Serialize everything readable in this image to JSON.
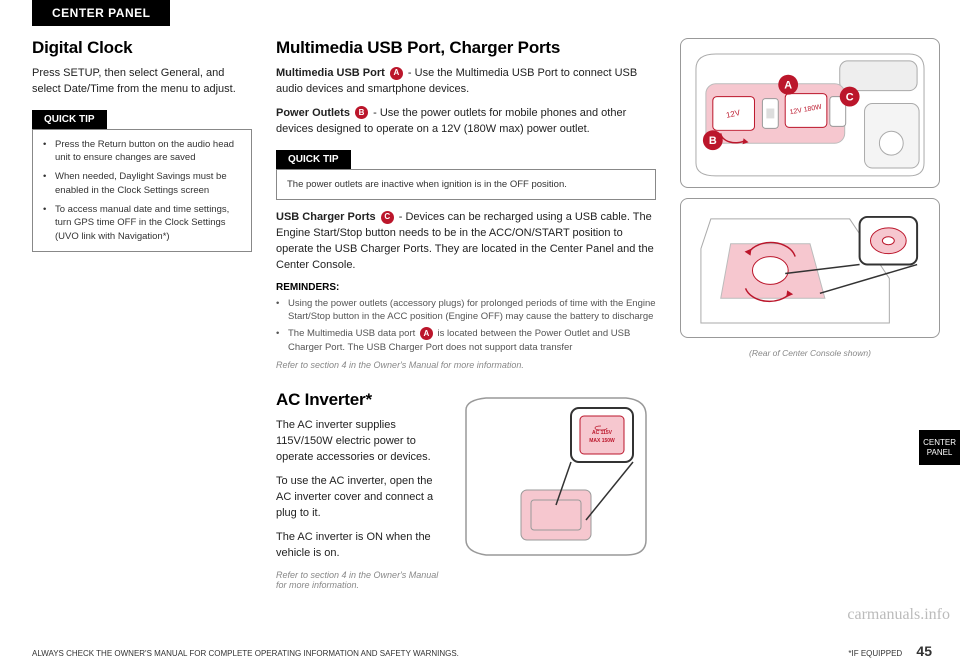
{
  "tab_label": "CENTER PANEL",
  "digital_clock": {
    "heading": "Digital Clock",
    "para": "Press SETUP, then select General, and select Date/Time from the menu to adjust.",
    "quicktip_label": "QUICK TIP",
    "tips": [
      "Press the Return button on the audio head unit to ensure changes are saved",
      "When needed, Daylight Savings must be enabled in the Clock Settings screen",
      "To access manual date and time settings, turn GPS time OFF in the Clock Settings (UVO link with Navigation*)"
    ]
  },
  "multimedia": {
    "heading": "Multimedia USB Port, Charger Ports",
    "line1_bold": "Multimedia USB Port",
    "line1_rest": " - Use the Multimedia USB Port to connect USB audio devices and smartphone devices.",
    "line2_bold": "Power Outlets",
    "line2_rest": " - Use the power outlets for mobile phones and other devices designed to operate on a 12V (180W max) power outlet.",
    "quicktip_label": "QUICK TIP",
    "quicktip_text": "The power outlets are inactive when ignition is in the OFF position.",
    "line3_bold": "USB Charger Ports",
    "line3_rest": " - Devices can be recharged using a USB cable. The Engine Start/Stop button needs to be in the ACC/ON/START position to operate the USB Charger Ports. They are located in the Center Panel and the Center Console.",
    "reminders_head": "REMINDERS:",
    "reminders": [
      "Using the power outlets (accessory plugs) for prolonged periods of time with the Engine Start/Stop button in the ACC position (Engine OFF) may cause the battery to discharge",
      "The Multimedia USB data port __A__ is located between the Power Outlet and USB Charger Port. The USB Charger Port does not support data transfer"
    ],
    "refer": "Refer to section 4 in the Owner's Manual for more information."
  },
  "ac": {
    "heading": "AC Inverter*",
    "p1": "The AC inverter supplies 115V/150W electric power to operate accessories or devices.",
    "p2": "To use the AC inverter, open the AC inverter cover and connect a plug to it.",
    "p3": "The AC inverter is ON when the vehicle is on.",
    "refer": "Refer to section 4 in the Owner's Manual for more information."
  },
  "badges": {
    "A": {
      "letter": "A",
      "color": "#bb162b"
    },
    "B": {
      "letter": "B",
      "color": "#bb162b"
    },
    "C": {
      "letter": "C",
      "color": "#bb162b"
    }
  },
  "figures": {
    "rear_caption": "(Rear of Center Console shown)",
    "ac_label_top": "AC 115V",
    "ac_label_bot": "MAX 150W"
  },
  "side_tab": {
    "line1": "CENTER",
    "line2": "PANEL"
  },
  "footer": {
    "left": "ALWAYS CHECK THE OWNER'S MANUAL FOR COMPLETE OPERATING INFORMATION AND SAFETY WARNINGS.",
    "right": "*IF EQUIPPED",
    "page": "45"
  },
  "watermark": "carmanuals.info",
  "colors": {
    "highlight": "#f6c7cf",
    "badge": "#bb162b",
    "grey": "#cccccc"
  }
}
